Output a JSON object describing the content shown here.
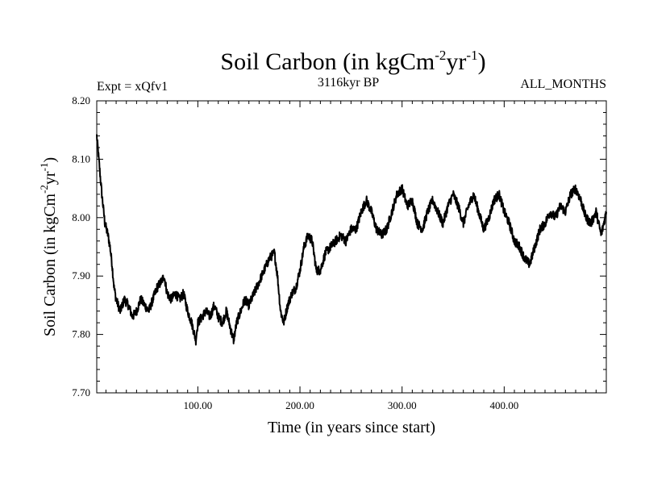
{
  "chart_data": {
    "type": "line",
    "title": "Soil Carbon (in kgCm",
    "title_sup1": "-2",
    "title_mid": "yr",
    "title_sup2": "-1",
    "title_end": ")",
    "left_label": "Expt = xQfv1",
    "center_label": "3116kyr BP",
    "right_label": "ALL_MONTHS",
    "xlabel": "Time (in years since start)",
    "ylabel_main": "Soil Carbon (in kgCm",
    "ylabel_sup1": "-2",
    "ylabel_mid": "yr",
    "ylabel_sup2": "-1",
    "ylabel_end": ")",
    "xlim": [
      1,
      500
    ],
    "ylim": [
      7.7,
      8.2
    ],
    "x_ticks": [
      100,
      200,
      300,
      400
    ],
    "x_tick_labels": [
      "100.00",
      "200.00",
      "300.00",
      "400.00"
    ],
    "y_ticks": [
      7.7,
      7.8,
      7.9,
      8.0,
      8.1,
      8.2
    ],
    "y_tick_labels": [
      "7.70",
      "7.80",
      "7.90",
      "8.00",
      "8.10",
      "8.20"
    ],
    "series": [
      {
        "name": "Soil Carbon",
        "color": "#000000",
        "points": [
          [
            1,
            8.14
          ],
          [
            3,
            8.1
          ],
          [
            6,
            8.04
          ],
          [
            9,
            7.99
          ],
          [
            12,
            7.97
          ],
          [
            14,
            7.95
          ],
          [
            16,
            7.92
          ],
          [
            18,
            7.88
          ],
          [
            20,
            7.86
          ],
          [
            24,
            7.84
          ],
          [
            28,
            7.86
          ],
          [
            32,
            7.85
          ],
          [
            36,
            7.83
          ],
          [
            40,
            7.84
          ],
          [
            44,
            7.86
          ],
          [
            48,
            7.85
          ],
          [
            52,
            7.84
          ],
          [
            56,
            7.86
          ],
          [
            60,
            7.88
          ],
          [
            64,
            7.89
          ],
          [
            67,
            7.9
          ],
          [
            70,
            7.87
          ],
          [
            74,
            7.86
          ],
          [
            78,
            7.87
          ],
          [
            82,
            7.86
          ],
          [
            86,
            7.87
          ],
          [
            90,
            7.84
          ],
          [
            94,
            7.82
          ],
          [
            98,
            7.79
          ],
          [
            100,
            7.82
          ],
          [
            104,
            7.83
          ],
          [
            108,
            7.84
          ],
          [
            112,
            7.83
          ],
          [
            116,
            7.85
          ],
          [
            120,
            7.83
          ],
          [
            124,
            7.82
          ],
          [
            128,
            7.84
          ],
          [
            132,
            7.81
          ],
          [
            135,
            7.79
          ],
          [
            138,
            7.82
          ],
          [
            142,
            7.84
          ],
          [
            146,
            7.86
          ],
          [
            150,
            7.85
          ],
          [
            155,
            7.87
          ],
          [
            160,
            7.89
          ],
          [
            165,
            7.91
          ],
          [
            170,
            7.93
          ],
          [
            175,
            7.94
          ],
          [
            178,
            7.9
          ],
          [
            181,
            7.84
          ],
          [
            184,
            7.82
          ],
          [
            188,
            7.85
          ],
          [
            192,
            7.87
          ],
          [
            196,
            7.88
          ],
          [
            200,
            7.91
          ],
          [
            204,
            7.95
          ],
          [
            208,
            7.97
          ],
          [
            212,
            7.96
          ],
          [
            216,
            7.91
          ],
          [
            220,
            7.91
          ],
          [
            225,
            7.94
          ],
          [
            230,
            7.95
          ],
          [
            235,
            7.96
          ],
          [
            240,
            7.97
          ],
          [
            245,
            7.96
          ],
          [
            250,
            7.98
          ],
          [
            255,
            7.98
          ],
          [
            260,
            8.01
          ],
          [
            265,
            8.03
          ],
          [
            270,
            8.01
          ],
          [
            275,
            7.98
          ],
          [
            280,
            7.97
          ],
          [
            285,
            7.98
          ],
          [
            290,
            8.01
          ],
          [
            295,
            8.04
          ],
          [
            300,
            8.05
          ],
          [
            305,
            8.02
          ],
          [
            310,
            8.03
          ],
          [
            315,
            7.99
          ],
          [
            320,
            7.98
          ],
          [
            325,
            8.01
          ],
          [
            330,
            8.03
          ],
          [
            335,
            8.01
          ],
          [
            340,
            7.99
          ],
          [
            345,
            8.02
          ],
          [
            350,
            8.04
          ],
          [
            355,
            8.02
          ],
          [
            360,
            7.99
          ],
          [
            365,
            8.02
          ],
          [
            370,
            8.04
          ],
          [
            375,
            8.01
          ],
          [
            380,
            7.98
          ],
          [
            385,
            8.0
          ],
          [
            390,
            8.03
          ],
          [
            395,
            8.04
          ],
          [
            400,
            8.01
          ],
          [
            405,
            7.99
          ],
          [
            410,
            7.96
          ],
          [
            415,
            7.95
          ],
          [
            420,
            7.93
          ],
          [
            425,
            7.92
          ],
          [
            430,
            7.95
          ],
          [
            435,
            7.98
          ],
          [
            440,
            7.99
          ],
          [
            445,
            8.01
          ],
          [
            450,
            8.0
          ],
          [
            455,
            8.02
          ],
          [
            460,
            8.01
          ],
          [
            465,
            8.04
          ],
          [
            470,
            8.05
          ],
          [
            475,
            8.03
          ],
          [
            480,
            8.0
          ],
          [
            485,
            7.99
          ],
          [
            490,
            8.01
          ],
          [
            495,
            7.97
          ],
          [
            500,
            8.01
          ]
        ]
      }
    ]
  }
}
